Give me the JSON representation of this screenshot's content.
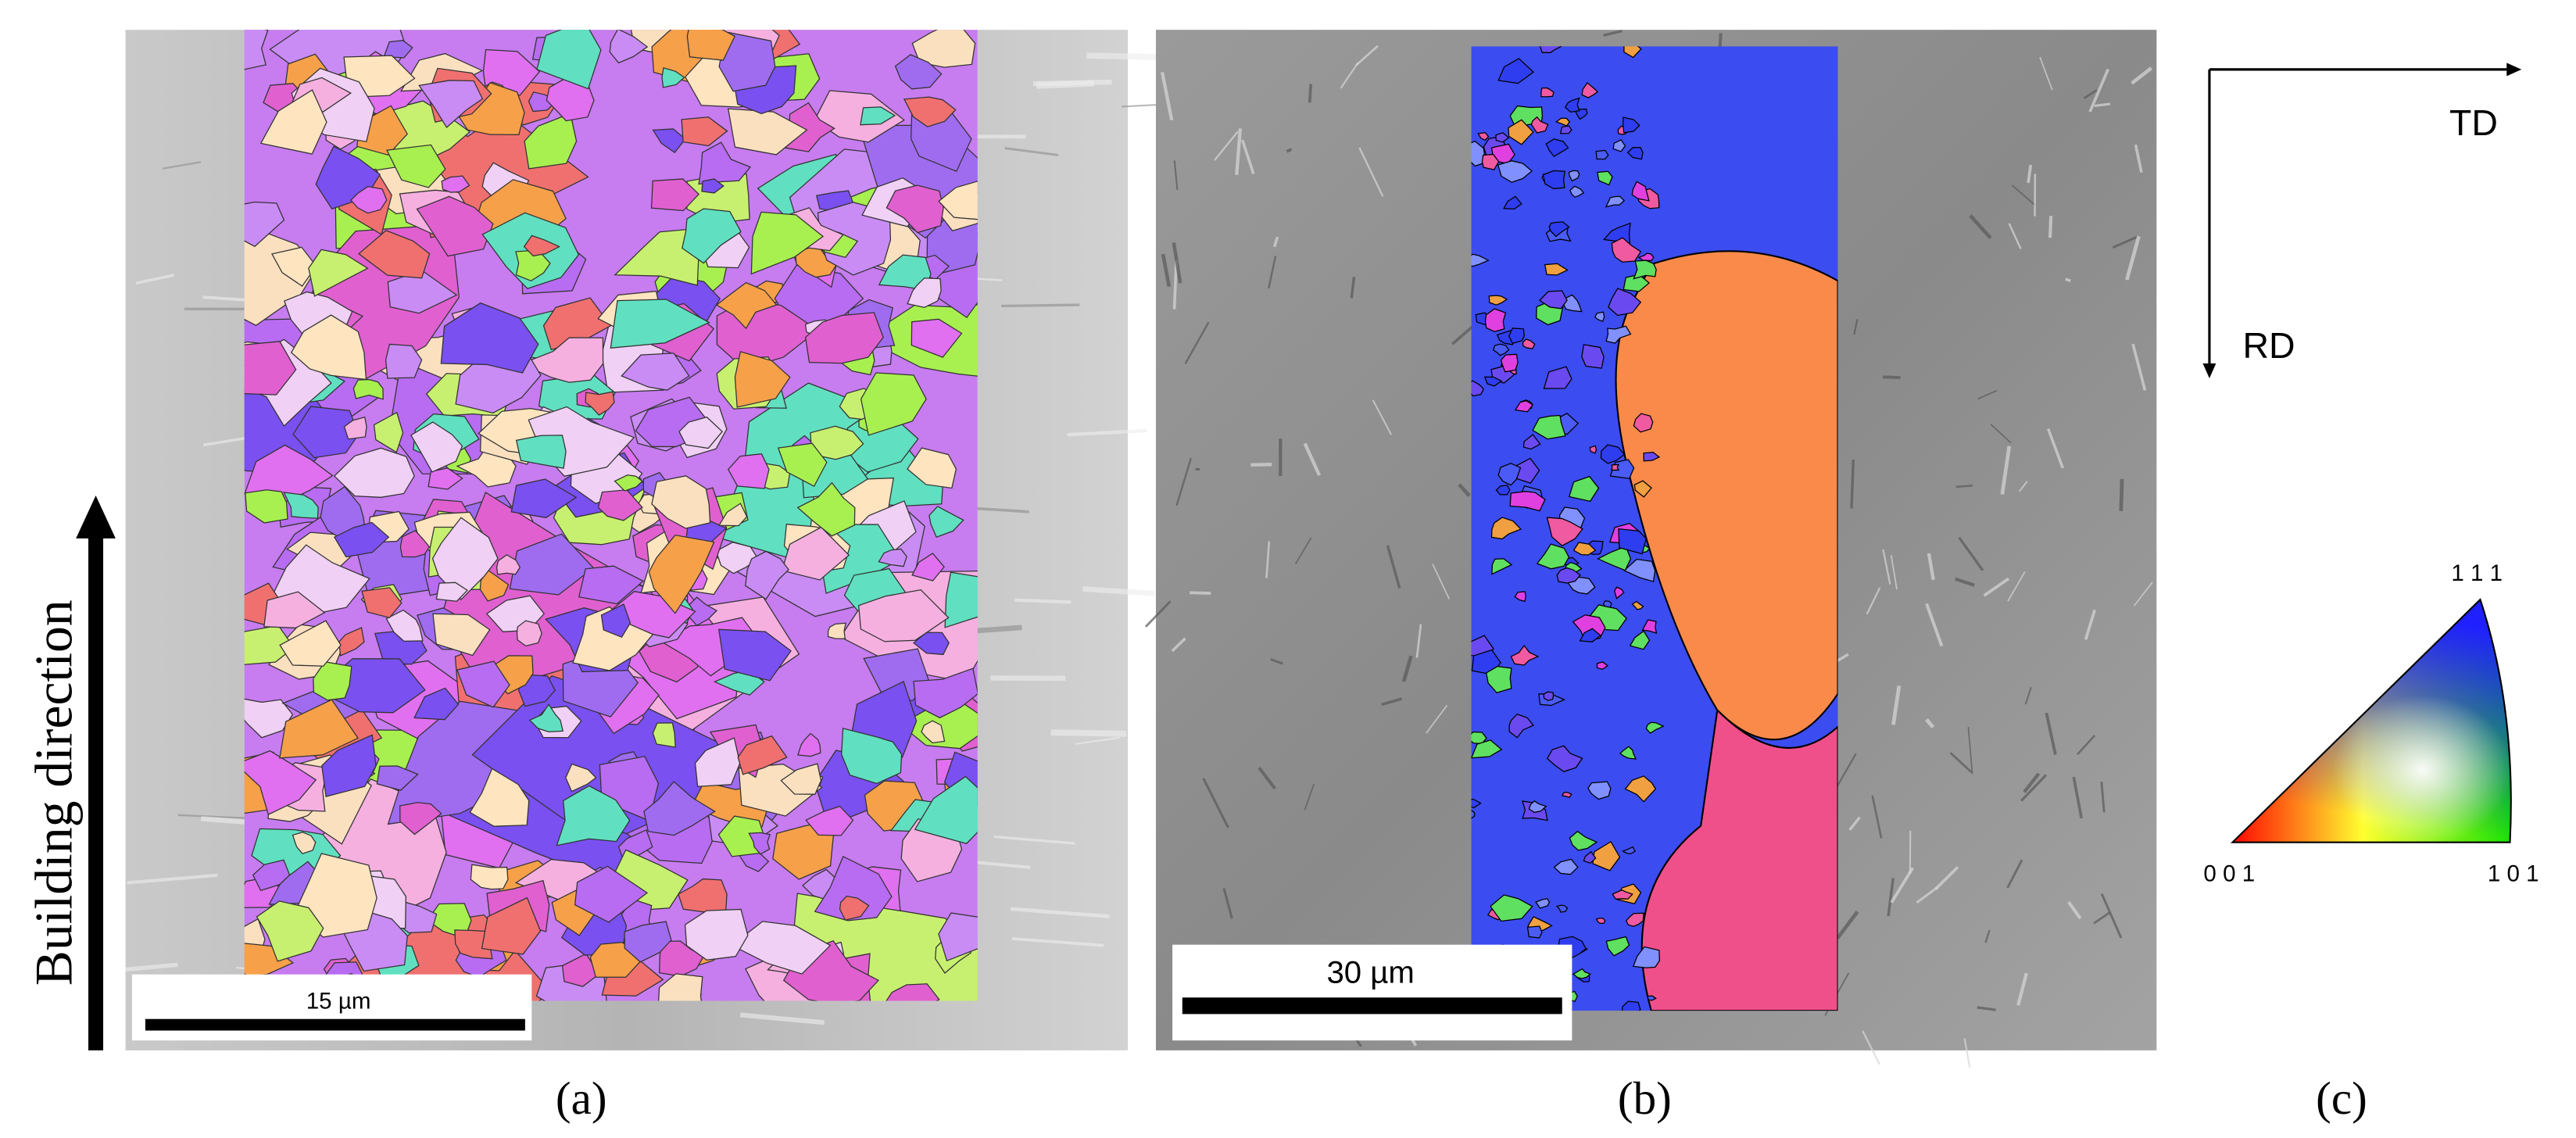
{
  "panels": [
    {
      "label": "(a)",
      "scale_bar": "15 µm",
      "axis_label": "Building direction"
    },
    {
      "label": "(b)",
      "scale_bar": "30 µm"
    },
    {
      "label": "(c)",
      "directions": [
        "TD",
        "RD"
      ],
      "triangle_corners": [
        "1 1 1",
        "0 0 1",
        "1 0 1"
      ]
    }
  ]
}
